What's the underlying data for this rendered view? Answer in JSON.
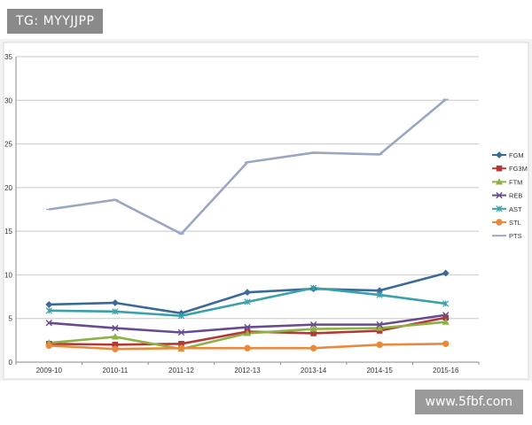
{
  "watermark_top": "TG: MYYJJPP",
  "watermark_bottom": "www.5fbf.com",
  "chart_data": {
    "type": "line",
    "categories": [
      "2009-10",
      "2010-11",
      "2011-12",
      "2012-13",
      "2013-14",
      "2014-15",
      "2015-16"
    ],
    "ylim": [
      0,
      35
    ],
    "yticks": [
      0,
      5,
      10,
      15,
      20,
      25,
      30,
      35
    ],
    "grid": true,
    "legend_position": "right",
    "series": [
      {
        "name": "FGM",
        "color": "#3c6a96",
        "marker": "diamond",
        "values": [
          6.6,
          6.8,
          5.6,
          8.0,
          8.4,
          8.2,
          10.2
        ]
      },
      {
        "name": "FG3M",
        "color": "#b23a36",
        "marker": "square",
        "values": [
          2.1,
          2.0,
          2.1,
          3.5,
          3.3,
          3.6,
          5.1
        ]
      },
      {
        "name": "FTM",
        "color": "#8fb045",
        "marker": "triangle",
        "values": [
          2.2,
          2.9,
          1.5,
          3.3,
          3.8,
          3.9,
          4.6
        ]
      },
      {
        "name": "REB",
        "color": "#6a4a8e",
        "marker": "x",
        "values": [
          4.5,
          3.9,
          3.4,
          4.0,
          4.3,
          4.3,
          5.4
        ]
      },
      {
        "name": "AST",
        "color": "#3aa0aa",
        "marker": "star",
        "values": [
          5.9,
          5.8,
          5.3,
          6.9,
          8.5,
          7.7,
          6.7
        ]
      },
      {
        "name": "STL",
        "color": "#e88a3c",
        "marker": "circle",
        "values": [
          1.9,
          1.5,
          1.6,
          1.6,
          1.6,
          2.0,
          2.1
        ]
      },
      {
        "name": "PTS",
        "color": "#9aa6c2",
        "marker": "line",
        "values": [
          17.5,
          18.6,
          14.7,
          22.9,
          24.0,
          23.8,
          30.1
        ]
      }
    ]
  }
}
